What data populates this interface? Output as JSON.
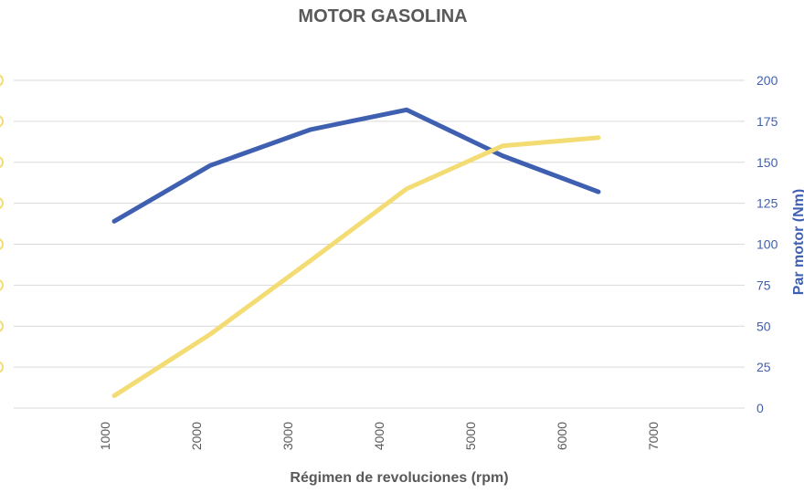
{
  "chart_data": {
    "type": "line",
    "title": "MOTOR GASOLINA",
    "xlabel": "Régimen de revoluciones (rpm)",
    "x_ticks": [
      "1000",
      "2000",
      "3000",
      "4000",
      "5000",
      "6000",
      "7000"
    ],
    "y_right": {
      "label": "Par motor (Nm)",
      "ticks": [
        "0",
        "25",
        "50",
        "75",
        "100",
        "125",
        "150",
        "175",
        "200"
      ],
      "range": [
        0,
        200
      ]
    },
    "y_left": {
      "range": [
        0,
        8
      ]
    },
    "xlim": [
      0,
      8000
    ],
    "grid": true,
    "series": [
      {
        "color": "#3f5fb0",
        "axis": "right",
        "x": [
          1100,
          2150,
          3250,
          4300,
          5350,
          6400
        ],
        "y": [
          114,
          148,
          170,
          182,
          154,
          132
        ]
      },
      {
        "color": "#f4dc75",
        "axis": "left",
        "x": [
          1100,
          2150,
          3250,
          4300,
          5350,
          6400
        ],
        "y": [
          0.3,
          1.8,
          3.6,
          5.35,
          6.4,
          6.6
        ]
      }
    ]
  },
  "colors": {
    "grid": "#d9d9d9",
    "text": "#595959",
    "torque": "#3f5fb0",
    "power": "#f4dc75"
  }
}
